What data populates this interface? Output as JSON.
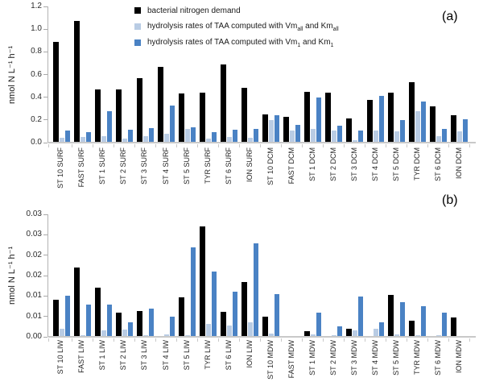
{
  "colors": {
    "black": "#000000",
    "light_blue": "#b9cce4",
    "blue": "#4a82c4",
    "axis": "#c9c9c9",
    "text": "#262626"
  },
  "legend": {
    "items": [
      {
        "color_key": "black",
        "segments": [
          {
            "t": "bacterial nitrogen demand"
          }
        ]
      },
      {
        "color_key": "light_blue",
        "segments": [
          {
            "t": "hydrolysis rates of TAA computed with Vm"
          },
          {
            "t": "all",
            "sub": true
          },
          {
            "t": " and Km"
          },
          {
            "t": "all",
            "sub": true
          }
        ]
      },
      {
        "color_key": "blue",
        "segments": [
          {
            "t": "hydrolysis rates of TAA computed with Vm"
          },
          {
            "t": "1",
            "sub": true
          },
          {
            "t": " and Km"
          },
          {
            "t": "1",
            "sub": true
          }
        ]
      }
    ]
  },
  "chart_data": [
    {
      "type": "bar",
      "id": "a",
      "panel_label": "(a)",
      "ylabel": "nmol N L⁻¹ h⁻¹",
      "ylim": [
        0,
        1.2
      ],
      "ytick_labels": [
        "0.0",
        "0.2",
        "0.4",
        "0.6",
        "0.8",
        "1.0",
        "1.2"
      ],
      "grid": false,
      "legend_position": "top-center-inside",
      "categories": [
        "ST 10 SURF",
        "FAST SURF",
        "ST 1 SURF",
        "ST 2 SURF",
        "ST 3 SURF",
        "ST 4 SURF",
        "ST 5 SURF",
        "TYR SURF",
        "ST 6 SURF",
        "ION SURF",
        "ST 10 DCM",
        "FAST DCM",
        "ST 1 DCM",
        "ST 2 DCM",
        "ST 3 DCM",
        "ST 4 DCM",
        "ST 5 DCM",
        "TYR DCM",
        "ST 6 DCM",
        "ION DCM"
      ],
      "series": [
        {
          "name": "bacterial nitrogen demand",
          "color_key": "black",
          "values": [
            0.89,
            1.07,
            0.47,
            0.47,
            0.57,
            0.67,
            0.435,
            0.44,
            0.69,
            0.48,
            0.25,
            0.23,
            0.45,
            0.44,
            0.21,
            0.38,
            0.44,
            0.53,
            0.32,
            0.24
          ]
        },
        {
          "name": "hydrolysis rates of TAA computed with Vm_all and Km_all",
          "color_key": "light_blue",
          "values": [
            0.04,
            0.05,
            0.06,
            0.035,
            0.055,
            0.08,
            0.12,
            0.035,
            0.05,
            0.04,
            0.2,
            0.11,
            0.12,
            0.11,
            0.02,
            0.11,
            0.1,
            0.28,
            0.06,
            0.1
          ]
        },
        {
          "name": "hydrolysis rates of TAA computed with Vm_1 and Km_1",
          "color_key": "blue",
          "values": [
            0.105,
            0.09,
            0.28,
            0.115,
            0.13,
            0.325,
            0.135,
            0.09,
            0.115,
            0.12,
            0.24,
            0.16,
            0.4,
            0.15,
            0.11,
            0.41,
            0.2,
            0.36,
            0.12,
            0.205
          ]
        }
      ]
    },
    {
      "type": "bar",
      "id": "b",
      "panel_label": "(b)",
      "ylabel": "nmol N L⁻¹ h⁻¹",
      "ylim": [
        0,
        0.03
      ],
      "ytick_labels": [
        "0.00",
        "0.01",
        "0.01",
        "0.02",
        "0.02",
        "0.03",
        "0.03"
      ],
      "grid": false,
      "legend_position": "none",
      "categories": [
        "ST 10 LIW",
        "FAST LIW",
        "ST 1 LIW",
        "ST 2 LIW",
        "ST 3 LIW",
        "ST 4 LIW",
        "ST 5 LIW",
        "TYR LIW",
        "ST 6 LIW",
        "ION LIW",
        "ST 10 MDW",
        "FAST MDW",
        "ST 1 MDW",
        "ST 2 MDW",
        "ST 3 MDW",
        "ST 4 MDW",
        "ST 5 MDW",
        "TYR MDW",
        "ST 6 MDW",
        "ION MDW"
      ],
      "series": [
        {
          "name": "bacterial nitrogen demand",
          "color_key": "black",
          "values": [
            0.009,
            0.017,
            0.012,
            0.006,
            0.0063,
            0,
            0.0097,
            0.027,
            0.0062,
            0.0135,
            0.005,
            0,
            0.0013,
            0,
            0.0019,
            0,
            0.0102,
            0.004,
            0,
            0.0047
          ]
        },
        {
          "name": "hydrolysis rates of TAA computed with Vm_all and Km_all",
          "color_key": "light_blue",
          "values": [
            0.002,
            0.0005,
            0.0015,
            0.0018,
            0.0005,
            0.0007,
            0.0005,
            0.0032,
            0.0027,
            0.0035,
            0.0008,
            0,
            0.0007,
            0.0004,
            0.0015,
            0.002,
            0.0007,
            0.0005,
            0.0004,
            0
          ]
        },
        {
          "name": "hydrolysis rates of TAA computed with Vm_1 and Km_1",
          "color_key": "blue",
          "values": [
            0.01,
            0.008,
            0.008,
            0.0035,
            0.007,
            0.005,
            0.022,
            0.016,
            0.011,
            0.023,
            0.0105,
            0,
            0.006,
            0.0025,
            0.0099,
            0.0035,
            0.0085,
            0.0075,
            0.006,
            0
          ]
        }
      ]
    }
  ]
}
